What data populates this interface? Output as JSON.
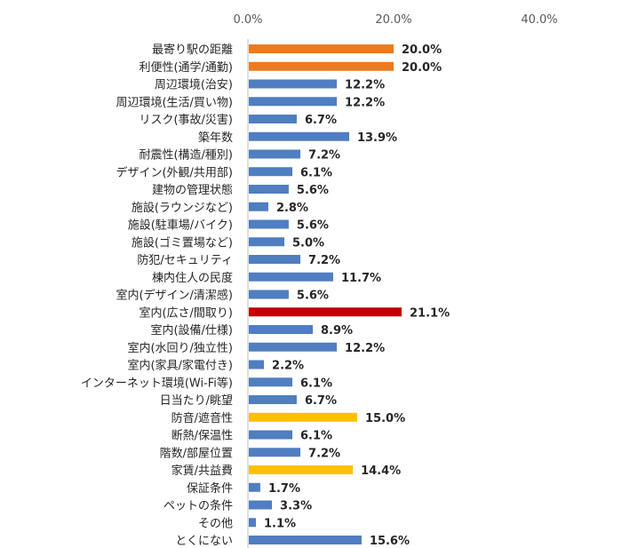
{
  "chart_data": {
    "type": "bar",
    "orientation": "horizontal",
    "xlim": [
      0,
      60
    ],
    "x_ticks": [
      "0.0%",
      "20.0%",
      "40.0%"
    ],
    "x_tick_values": [
      0,
      20,
      40
    ],
    "gridlines": false,
    "categories": [
      "最寄り駅の距離",
      "利便性(通学/通勤)",
      "周辺環境(治安)",
      "周辺環境(生活/買い物)",
      "リスク(事故/災害)",
      "築年数",
      "耐震性(構造/種別)",
      "デザイン(外観/共用部)",
      "建物の管理状態",
      "施設(ラウンジなど)",
      "施設(駐車場/バイク)",
      "施設(ゴミ置場など)",
      "防犯/セキュリティ",
      "棟内住人の民度",
      "室内(デザイン/清潔感)",
      "室内(広さ/間取り)",
      "室内(設備/仕様)",
      "室内(水回り/独立性)",
      "室内(家具/家電付き)",
      "インターネット環境(Wi-Fi等)",
      "日当たり/眺望",
      "防音/遮音性",
      "断熱/保温性",
      "階数/部屋位置",
      "家賃/共益費",
      "保証条件",
      "ペットの条件",
      "その他",
      "とくにない"
    ],
    "values": [
      20.0,
      20.0,
      12.2,
      12.2,
      6.7,
      13.9,
      7.2,
      6.1,
      5.6,
      2.8,
      5.6,
      5.0,
      7.2,
      11.7,
      5.6,
      21.1,
      8.9,
      12.2,
      2.2,
      6.1,
      6.7,
      15.0,
      6.1,
      7.2,
      14.4,
      1.7,
      3.3,
      1.1,
      15.6
    ],
    "value_labels": [
      "20.0%",
      "20.0%",
      "12.2%",
      "12.2%",
      "6.7%",
      "13.9%",
      "7.2%",
      "6.1%",
      "5.6%",
      "2.8%",
      "5.6%",
      "5.0%",
      "7.2%",
      "11.7%",
      "5.6%",
      "21.1%",
      "8.9%",
      "12.2%",
      "2.2%",
      "6.1%",
      "6.7%",
      "15.0%",
      "6.1%",
      "7.2%",
      "14.4%",
      "1.7%",
      "3.3%",
      "1.1%",
      "15.6%"
    ],
    "bar_colors": [
      "#E97B23",
      "#E97B23",
      "#4F7EC1",
      "#4F7EC1",
      "#4F7EC1",
      "#4F7EC1",
      "#4F7EC1",
      "#4F7EC1",
      "#4F7EC1",
      "#4F7EC1",
      "#4F7EC1",
      "#4F7EC1",
      "#4F7EC1",
      "#4F7EC1",
      "#4F7EC1",
      "#C00000",
      "#4F7EC1",
      "#4F7EC1",
      "#4F7EC1",
      "#4F7EC1",
      "#4F7EC1",
      "#FFC000",
      "#4F7EC1",
      "#4F7EC1",
      "#FFC000",
      "#4F7EC1",
      "#4F7EC1",
      "#4F7EC1",
      "#4F7EC1"
    ],
    "axis_color": "#BFBFBF"
  }
}
